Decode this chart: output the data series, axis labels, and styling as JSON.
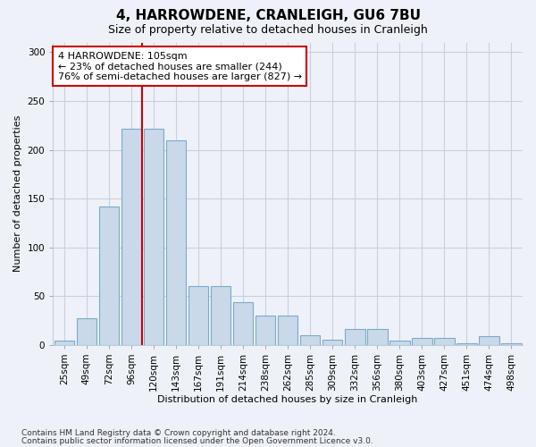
{
  "title": "4, HARROWDENE, CRANLEIGH, GU6 7BU",
  "subtitle": "Size of property relative to detached houses in Cranleigh",
  "xlabel": "Distribution of detached houses by size in Cranleigh",
  "ylabel": "Number of detached properties",
  "bar_labels": [
    "25sqm",
    "49sqm",
    "72sqm",
    "96sqm",
    "120sqm",
    "143sqm",
    "167sqm",
    "191sqm",
    "214sqm",
    "238sqm",
    "262sqm",
    "285sqm",
    "309sqm",
    "332sqm",
    "356sqm",
    "380sqm",
    "403sqm",
    "427sqm",
    "451sqm",
    "474sqm",
    "498sqm"
  ],
  "bar_heights": [
    4,
    27,
    142,
    222,
    222,
    210,
    60,
    60,
    44,
    30,
    30,
    10,
    5,
    16,
    16,
    4,
    7,
    7,
    2,
    9,
    2
  ],
  "bar_color": "#c9d9ea",
  "bar_edge_color": "#7aaac8",
  "vline_color": "#cc0000",
  "vline_x": 3.5,
  "annotation_text": "4 HARROWDENE: 105sqm\n← 23% of detached houses are smaller (244)\n76% of semi-detached houses are larger (827) →",
  "annotation_box_facecolor": "#ffffff",
  "annotation_box_edgecolor": "#cc0000",
  "ylim": [
    0,
    310
  ],
  "yticks": [
    0,
    50,
    100,
    150,
    200,
    250,
    300
  ],
  "grid_color": "#c8d0dc",
  "footer_line1": "Contains HM Land Registry data © Crown copyright and database right 2024.",
  "footer_line2": "Contains public sector information licensed under the Open Government Licence v3.0.",
  "background_color": "#eef2f8",
  "title_fontsize": 11,
  "subtitle_fontsize": 9,
  "tick_fontsize": 7.5,
  "ylabel_fontsize": 8,
  "xlabel_fontsize": 8,
  "footer_fontsize": 6.5
}
